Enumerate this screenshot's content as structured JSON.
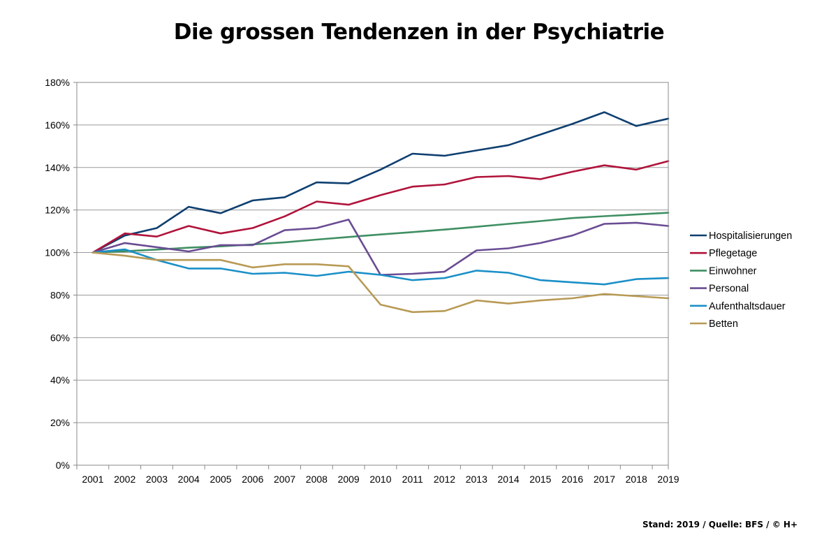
{
  "chart_data": {
    "type": "line",
    "title": "Die grossen Tendenzen in der Psychiatrie",
    "xlabel": "",
    "ylabel": "",
    "x": [
      "2001",
      "2002",
      "2003",
      "2004",
      "2005",
      "2006",
      "2007",
      "2008",
      "2009",
      "2010",
      "2011",
      "2012",
      "2013",
      "2014",
      "2015",
      "2016",
      "2017",
      "2018",
      "2019"
    ],
    "ylim": [
      0,
      180
    ],
    "yticks": [
      0,
      20,
      40,
      60,
      80,
      100,
      120,
      140,
      160,
      180
    ],
    "ytick_labels": [
      "0%",
      "20%",
      "40%",
      "60%",
      "80%",
      "100%",
      "120%",
      "140%",
      "160%",
      "180%"
    ],
    "grid": "horizontal",
    "legend_position": "right",
    "series": [
      {
        "name": "Hospitalisierungen",
        "color": "#0e3f70",
        "values": [
          100,
          108,
          111.5,
          121.5,
          118.5,
          124.5,
          126,
          133,
          132.5,
          139,
          146.5,
          145.5,
          148,
          150.5,
          155.5,
          160.5,
          166,
          159.5,
          163
        ]
      },
      {
        "name": "Pflegetage",
        "color": "#b0133a",
        "values": [
          100,
          109,
          107.5,
          112.5,
          109,
          111.5,
          117,
          124,
          122.5,
          127,
          131,
          132,
          135.5,
          136,
          134.5,
          138,
          141,
          139,
          143
        ]
      },
      {
        "name": "Einwohner",
        "color": "#3f8f63",
        "values": [
          100,
          100.6,
          101.4,
          102.3,
          102.9,
          103.8,
          104.8,
          106.1,
          107.3,
          108.5,
          109.6,
          110.8,
          112.1,
          113.5,
          114.8,
          116.2,
          117.1,
          117.9,
          118.7
        ]
      },
      {
        "name": "Personal",
        "color": "#6a4c93",
        "values": [
          100,
          104.5,
          102.5,
          100.5,
          103.5,
          103.5,
          110.5,
          111.5,
          115.5,
          89.5,
          90,
          91,
          101,
          102,
          104.5,
          108,
          113.5,
          114,
          112.5
        ]
      },
      {
        "name": "Aufenthaltsdauer",
        "color": "#1a8fc7",
        "values": [
          100,
          101.5,
          96.5,
          92.5,
          92.5,
          90,
          90.5,
          89,
          91,
          89.5,
          87,
          88,
          91.5,
          90.5,
          87,
          86,
          85,
          87.5,
          88
        ]
      },
      {
        "name": "Betten",
        "color": "#b89a55",
        "values": [
          100,
          98.5,
          96.5,
          96.5,
          96.5,
          93,
          94.5,
          94.5,
          93.5,
          75.5,
          72,
          72.5,
          77.5,
          76,
          77.5,
          78.5,
          80.5,
          79.5,
          78.5
        ]
      }
    ]
  },
  "footer": {
    "source": "Stand: 2019 / Quelle: BFS / © H+"
  }
}
